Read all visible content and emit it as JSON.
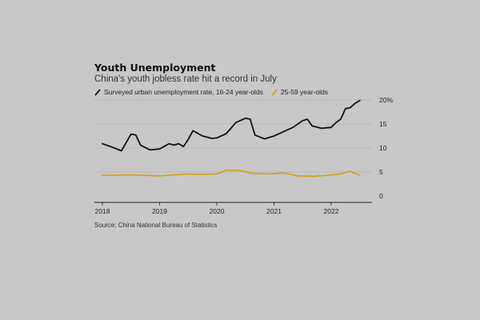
{
  "title": "Youth Unemployment",
  "subtitle": "China's youth jobless rate hit a record in July",
  "source": "Source: China National Bureau of Statistics",
  "colors": {
    "background": "#c8c8c8",
    "youth_series": "#111111",
    "adult_series": "#d4a017",
    "gridline": "#b4b4b4",
    "axis": "#222222"
  },
  "chart_data": {
    "type": "line",
    "title": "Youth Unemployment",
    "subtitle": "China's youth jobless rate hit a record in July",
    "xlabel": "",
    "ylabel": "",
    "xlim": [
      "2018-01",
      "2022-07"
    ],
    "ylim": [
      0,
      20
    ],
    "y_ticks": [
      {
        "value": 0,
        "label": "0"
      },
      {
        "value": 5,
        "label": "5"
      },
      {
        "value": 10,
        "label": "10"
      },
      {
        "value": 15,
        "label": "15"
      },
      {
        "value": 20,
        "label": "20%"
      }
    ],
    "x_ticks": [
      {
        "value": "2018-01",
        "label": "2018"
      },
      {
        "value": "2019-01",
        "label": "2019"
      },
      {
        "value": "2020-01",
        "label": "2020"
      },
      {
        "value": "2021-01",
        "label": "2021"
      },
      {
        "value": "2022-01",
        "label": "2022"
      }
    ],
    "grid": true,
    "legend_position": "top-left",
    "series": [
      {
        "name": "Surveyed urban unemployment rate, 16-24 year-olds",
        "color": "#111111",
        "x": [
          "2018-01",
          "2018-03",
          "2018-05",
          "2018-07",
          "2018-08",
          "2018-09",
          "2018-11",
          "2019-01",
          "2019-03",
          "2019-04",
          "2019-05",
          "2019-06",
          "2019-07",
          "2019-08",
          "2019-10",
          "2019-12",
          "2020-01",
          "2020-03",
          "2020-05",
          "2020-07",
          "2020-08",
          "2020-09",
          "2020-11",
          "2021-01",
          "2021-03",
          "2021-05",
          "2021-07",
          "2021-08",
          "2021-09",
          "2021-11",
          "2022-01",
          "2022-02",
          "2022-03",
          "2022-04",
          "2022-05",
          "2022-06",
          "2022-07"
        ],
        "values": [
          10.9,
          10.2,
          9.4,
          12.9,
          12.7,
          10.6,
          9.6,
          9.8,
          10.9,
          10.6,
          10.9,
          10.3,
          11.8,
          13.6,
          12.5,
          12.0,
          12.1,
          13.0,
          15.3,
          16.2,
          16.0,
          12.7,
          11.9,
          12.5,
          13.4,
          14.3,
          15.7,
          16.0,
          14.6,
          14.1,
          14.3,
          15.3,
          16.0,
          18.2,
          18.4,
          19.3,
          19.9
        ]
      },
      {
        "name": "25-59 year-olds",
        "color": "#d4a017",
        "x": [
          "2018-01",
          "2018-07",
          "2019-01",
          "2019-07",
          "2019-10",
          "2020-01",
          "2020-03",
          "2020-06",
          "2020-08",
          "2020-09",
          "2020-12",
          "2021-03",
          "2021-06",
          "2021-09",
          "2021-12",
          "2022-03",
          "2022-05",
          "2022-06",
          "2022-07"
        ],
        "values": [
          4.3,
          4.4,
          4.2,
          4.6,
          4.5,
          4.6,
          5.4,
          5.3,
          4.8,
          4.7,
          4.6,
          4.8,
          4.2,
          4.1,
          4.3,
          4.6,
          5.2,
          4.7,
          4.3
        ]
      }
    ]
  }
}
